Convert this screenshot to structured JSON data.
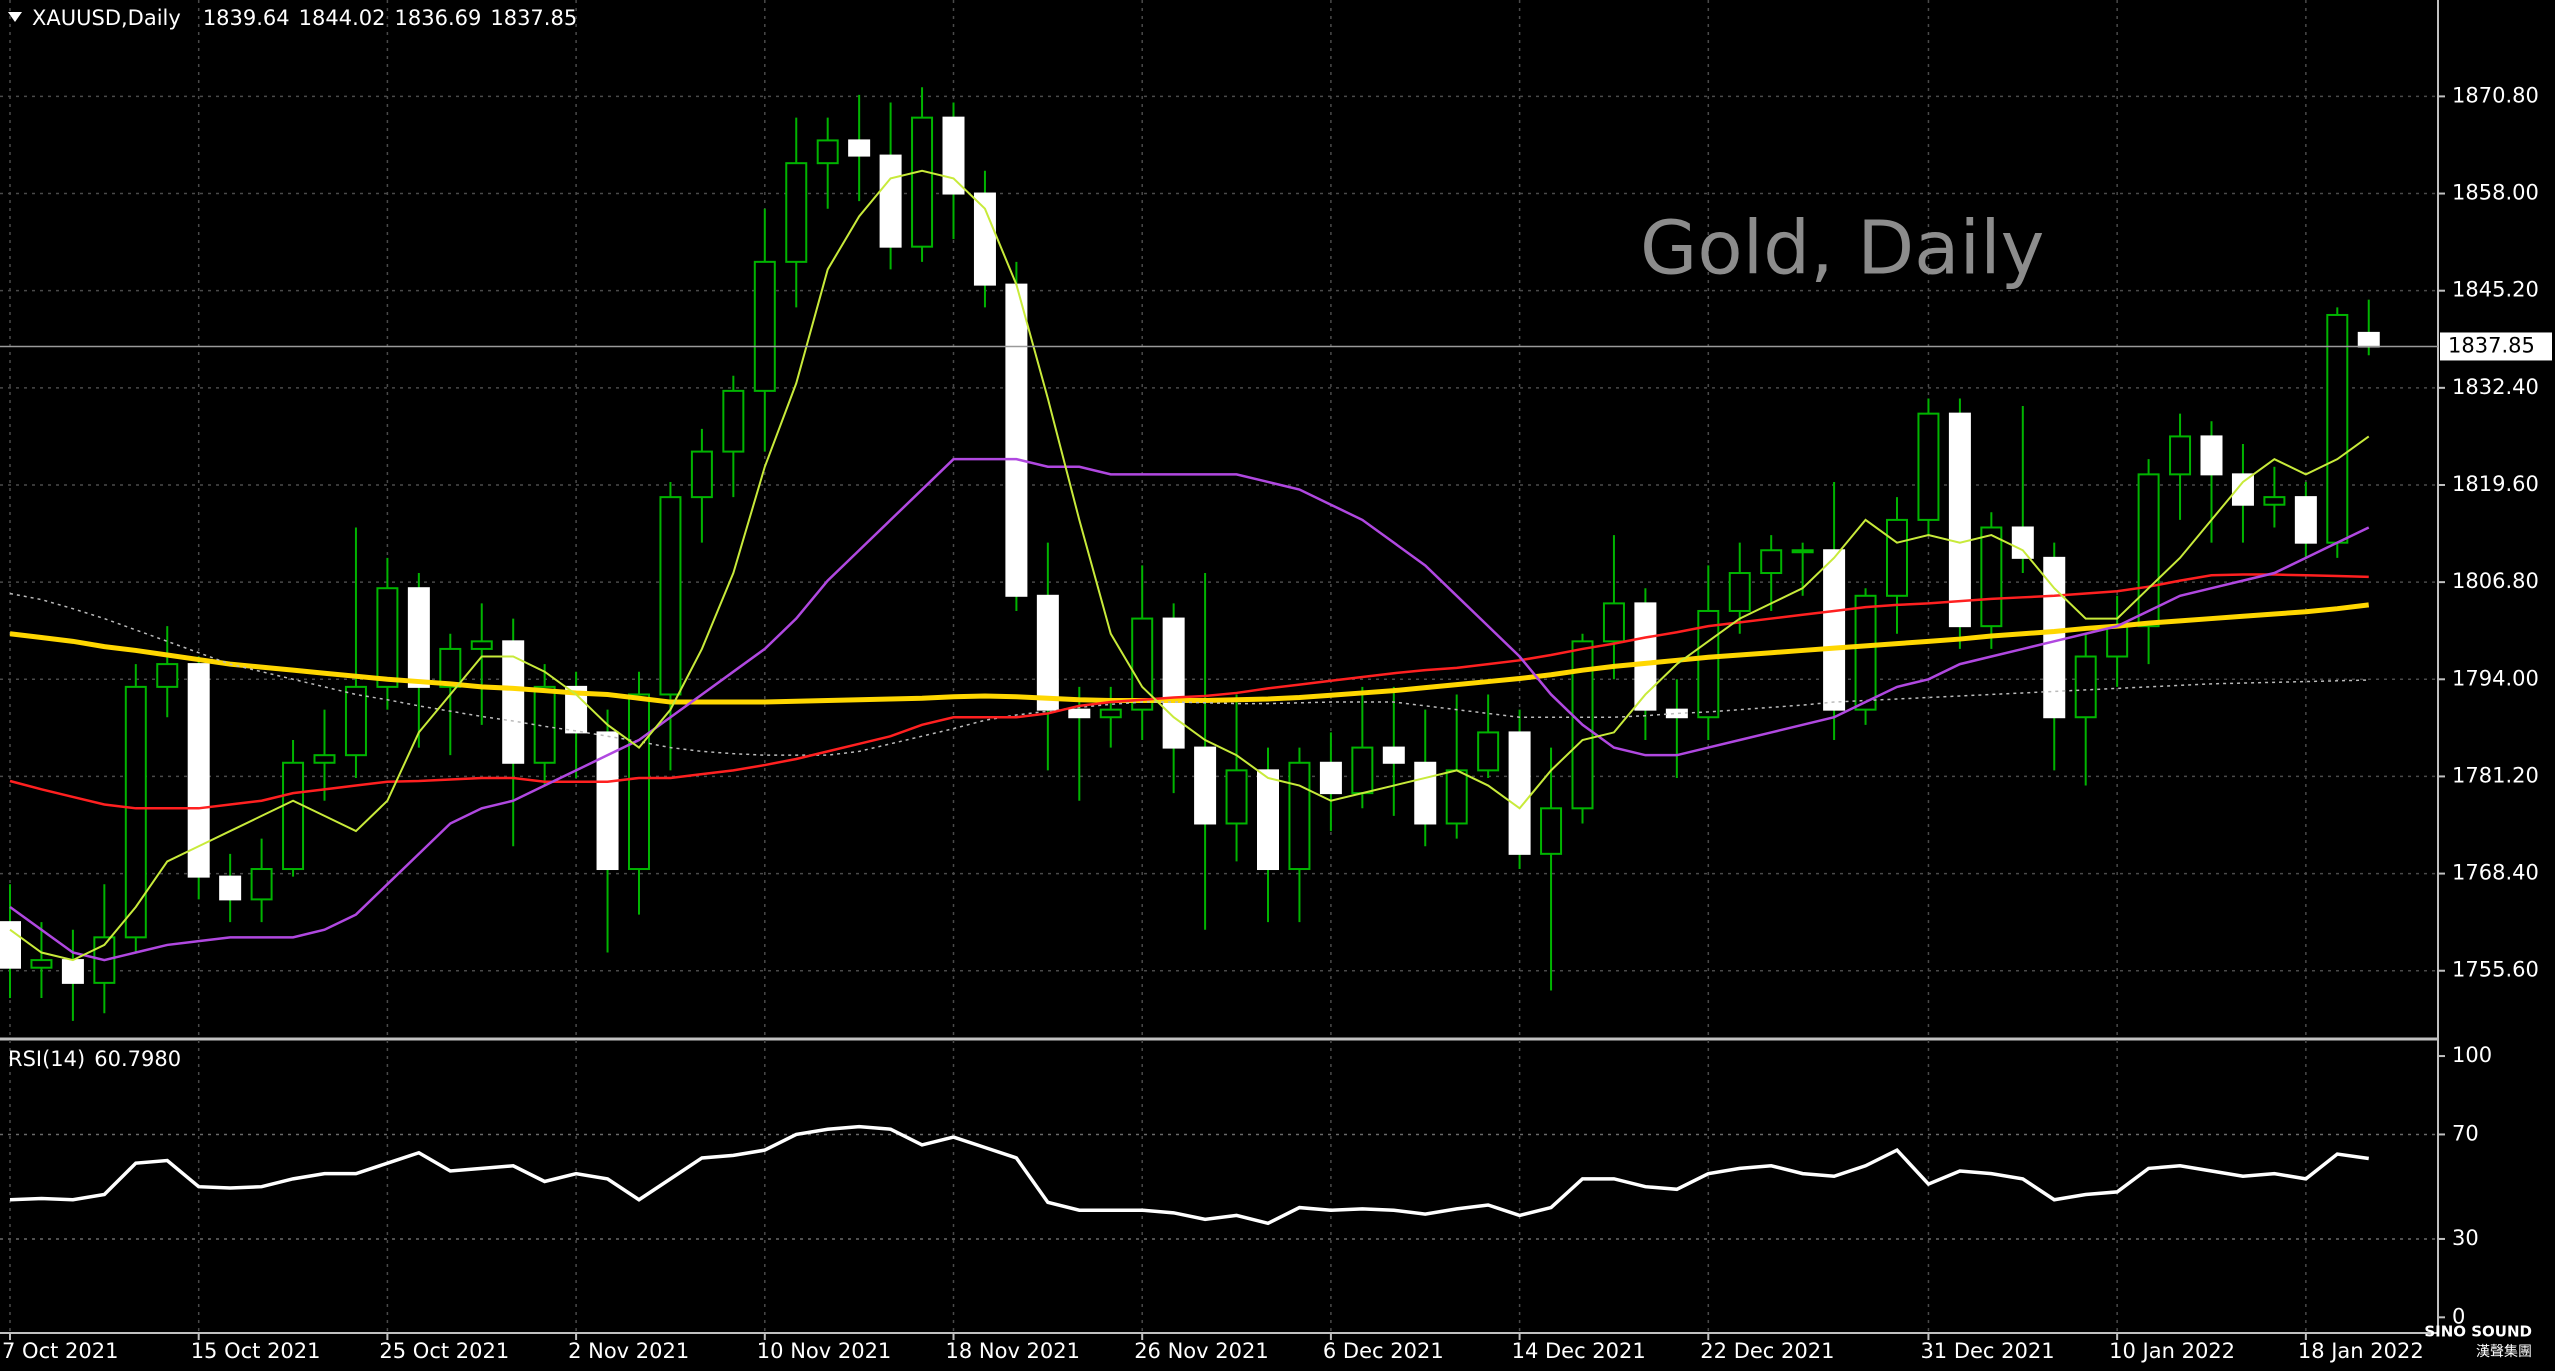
{
  "chart_data": {
    "type": "candlestick",
    "symbol": "XAUUSD,Daily",
    "annotation": "Gold, Daily",
    "categories": [
      "7 Oct 2021",
      null,
      null,
      null,
      null,
      null,
      "15 Oct 2021",
      null,
      null,
      null,
      null,
      null,
      "25 Oct 2021",
      null,
      null,
      null,
      null,
      null,
      "2 Nov 2021",
      null,
      null,
      null,
      null,
      null,
      "10 Nov 2021",
      null,
      null,
      null,
      null,
      null,
      "18 Nov 2021",
      null,
      null,
      null,
      null,
      null,
      "26 Nov 2021",
      null,
      null,
      null,
      null,
      null,
      "6 Dec 2021",
      null,
      null,
      null,
      null,
      null,
      "14 Dec 2021",
      null,
      null,
      null,
      null,
      null,
      "22 Dec 2021",
      null,
      null,
      null,
      null,
      null,
      null,
      "31 Dec 2021",
      null,
      null,
      null,
      null,
      null,
      "10 Jan 2022",
      null,
      null,
      null,
      null,
      null,
      "18 Jan 2022",
      null,
      null
    ],
    "candles": [
      [
        1762,
        1767,
        1752,
        1756
      ],
      [
        1756,
        1762,
        1752,
        1757
      ],
      [
        1757,
        1761,
        1749,
        1754
      ],
      [
        1754,
        1767,
        1750,
        1760
      ],
      [
        1760,
        1796,
        1758,
        1793
      ],
      [
        1793,
        1801,
        1789,
        1796
      ],
      [
        1796,
        1797,
        1765,
        1768
      ],
      [
        1768,
        1771,
        1762,
        1765
      ],
      [
        1765,
        1773,
        1762,
        1769
      ],
      [
        1769,
        1786,
        1768,
        1783
      ],
      [
        1783,
        1790,
        1778,
        1784
      ],
      [
        1784,
        1814,
        1781,
        1793
      ],
      [
        1793,
        1810,
        1790,
        1806
      ],
      [
        1806,
        1808,
        1785,
        1793
      ],
      [
        1793,
        1800,
        1784,
        1798
      ],
      [
        1798,
        1804,
        1788,
        1799
      ],
      [
        1799,
        1802,
        1772,
        1783
      ],
      [
        1783,
        1796,
        1780,
        1793
      ],
      [
        1793,
        1795,
        1781,
        1787
      ],
      [
        1787,
        1790,
        1758,
        1769
      ],
      [
        1769,
        1795,
        1763,
        1792
      ],
      [
        1792,
        1820,
        1782,
        1818
      ],
      [
        1818,
        1827,
        1812,
        1824
      ],
      [
        1824,
        1834,
        1818,
        1832
      ],
      [
        1832,
        1856,
        1824,
        1849
      ],
      [
        1849,
        1868,
        1843,
        1862
      ],
      [
        1862,
        1868,
        1856,
        1865
      ],
      [
        1865,
        1871,
        1857,
        1863
      ],
      [
        1863,
        1870,
        1848,
        1851
      ],
      [
        1851,
        1872,
        1849,
        1868
      ],
      [
        1868,
        1870,
        1852,
        1858
      ],
      [
        1858,
        1861,
        1843,
        1846
      ],
      [
        1846,
        1849,
        1803,
        1805
      ],
      [
        1805,
        1812,
        1782,
        1790
      ],
      [
        1790,
        1793,
        1778,
        1789
      ],
      [
        1789,
        1793,
        1785,
        1790
      ],
      [
        1790,
        1809,
        1786,
        1802
      ],
      [
        1802,
        1804,
        1779,
        1785
      ],
      [
        1785,
        1808,
        1761,
        1775
      ],
      [
        1775,
        1792,
        1770,
        1782
      ],
      [
        1782,
        1785,
        1762,
        1769
      ],
      [
        1769,
        1785,
        1762,
        1783
      ],
      [
        1783,
        1787,
        1774,
        1779
      ],
      [
        1779,
        1793,
        1777,
        1785
      ],
      [
        1785,
        1793,
        1776,
        1783
      ],
      [
        1783,
        1790,
        1772,
        1775
      ],
      [
        1775,
        1792,
        1773,
        1782
      ],
      [
        1782,
        1792,
        1781,
        1787
      ],
      [
        1787,
        1790,
        1769,
        1771
      ],
      [
        1771,
        1785,
        1753,
        1777
      ],
      [
        1777,
        1800,
        1775,
        1799
      ],
      [
        1799,
        1813,
        1794,
        1804
      ],
      [
        1804,
        1806,
        1786,
        1790
      ],
      [
        1790,
        1794,
        1781,
        1789
      ],
      [
        1789,
        1809,
        1786,
        1803
      ],
      [
        1803,
        1812,
        1800,
        1808
      ],
      [
        1808,
        1813,
        1803,
        1811
      ],
      [
        1811,
        1812,
        1805,
        1811
      ],
      [
        1811,
        1820,
        1786,
        1790
      ],
      [
        1790,
        1806,
        1788,
        1805
      ],
      [
        1805,
        1818,
        1800,
        1815
      ],
      [
        1815,
        1831,
        1813,
        1829
      ],
      [
        1829,
        1831,
        1798,
        1801
      ],
      [
        1801,
        1816,
        1798,
        1814
      ],
      [
        1814,
        1830,
        1808,
        1810
      ],
      [
        1810,
        1812,
        1782,
        1789
      ],
      [
        1789,
        1800,
        1780,
        1797
      ],
      [
        1797,
        1805,
        1793,
        1801
      ],
      [
        1801,
        1823,
        1796,
        1821
      ],
      [
        1821,
        1829,
        1815,
        1826
      ],
      [
        1826,
        1828,
        1812,
        1821
      ],
      [
        1821,
        1825,
        1812,
        1817
      ],
      [
        1817,
        1822,
        1814,
        1818
      ],
      [
        1818,
        1820,
        1810,
        1812
      ],
      [
        1812,
        1843,
        1810,
        1842
      ],
      [
        1839.64,
        1844.02,
        1836.69,
        1837.85
      ]
    ],
    "up_color": "#000000",
    "up_outline": "#00b400",
    "down_color": "#ffffff",
    "wick_color": "#00b400",
    "overlays": [
      {
        "color": "#ffd700",
        "width": 5,
        "dash": false,
        "values": [
          1800,
          1799.5,
          1799,
          1798.3,
          1797.8,
          1797.2,
          1796.6,
          1796,
          1795.6,
          1795.2,
          1794.8,
          1794.4,
          1794,
          1793.7,
          1793.4,
          1793,
          1792.8,
          1792.5,
          1792.2,
          1792,
          1791.5,
          1791,
          1791,
          1791,
          1791,
          1791.1,
          1791.2,
          1791.3,
          1791.4,
          1791.5,
          1791.7,
          1791.8,
          1791.7,
          1791.5,
          1791.3,
          1791.2,
          1791.2,
          1791.2,
          1791.2,
          1791.3,
          1791.4,
          1791.6,
          1791.9,
          1792.2,
          1792.5,
          1792.9,
          1793.3,
          1793.7,
          1794.1,
          1794.6,
          1795.2,
          1795.7,
          1796.1,
          1796.5,
          1796.9,
          1797.2,
          1797.5,
          1797.8,
          1798.1,
          1798.4,
          1798.7,
          1799,
          1799.3,
          1799.7,
          1800,
          1800.3,
          1800.7,
          1801,
          1801.4,
          1801.7,
          1802,
          1802.3,
          1802.6,
          1802.9,
          1803.3,
          1803.8
        ]
      },
      {
        "color": "#bbbbbb",
        "width": 1.5,
        "dash": true,
        "values": [
          1805.3,
          1804.5,
          1803.3,
          1802,
          1800.5,
          1799,
          1797.5,
          1796,
          1795,
          1794,
          1793,
          1792,
          1791.3,
          1790.5,
          1789.8,
          1789.1,
          1788.5,
          1787.8,
          1787.2,
          1786.5,
          1785.8,
          1785,
          1784.5,
          1784.2,
          1784,
          1784,
          1784,
          1784.5,
          1785.5,
          1786.5,
          1787.5,
          1788.6,
          1789.3,
          1789.8,
          1790.3,
          1790.7,
          1791,
          1791,
          1790.9,
          1790.8,
          1790.8,
          1790.9,
          1791,
          1791,
          1791,
          1790.5,
          1790,
          1789.5,
          1789,
          1789,
          1789,
          1789,
          1789.2,
          1789.5,
          1789.7,
          1790,
          1790.3,
          1790.6,
          1791,
          1791.2,
          1791.4,
          1791.6,
          1791.8,
          1792,
          1792.2,
          1792.4,
          1792.6,
          1792.8,
          1793,
          1793.2,
          1793.4,
          1793.5,
          1793.6,
          1793.7,
          1793.8,
          1793.9
        ]
      },
      {
        "color": "#ff2020",
        "width": 2.5,
        "dash": false,
        "values": [
          1780.6,
          1779.5,
          1778.5,
          1777.5,
          1777,
          1777,
          1777,
          1777.5,
          1778,
          1779,
          1779.5,
          1780,
          1780.5,
          1780.6,
          1780.8,
          1781,
          1781,
          1780.5,
          1780.5,
          1780.5,
          1781,
          1781,
          1781.5,
          1782,
          1782.7,
          1783.5,
          1784.5,
          1785.5,
          1786.5,
          1788,
          1789,
          1789,
          1789,
          1789.5,
          1790.5,
          1791,
          1791.3,
          1791.6,
          1791.8,
          1792.2,
          1792.8,
          1793.3,
          1793.8,
          1794.3,
          1794.8,
          1795.2,
          1795.5,
          1796,
          1796.5,
          1797.2,
          1798,
          1798.7,
          1799.5,
          1800.2,
          1801,
          1801.5,
          1802,
          1802.5,
          1803,
          1803.5,
          1803.8,
          1804,
          1804.3,
          1804.6,
          1804.8,
          1805,
          1805.3,
          1805.6,
          1806.2,
          1807,
          1807.7,
          1807.8,
          1807.8,
          1807.7,
          1807.6,
          1807.5
        ]
      },
      {
        "color": "#b048e0",
        "width": 2.5,
        "dash": false,
        "values": [
          1764,
          1761,
          1758,
          1757,
          1758,
          1759,
          1759.5,
          1760,
          1760,
          1760,
          1761,
          1763,
          1767,
          1771,
          1775,
          1777,
          1778,
          1780,
          1782,
          1784,
          1786,
          1789,
          1792,
          1795,
          1798,
          1802,
          1807,
          1811,
          1815,
          1819,
          1823,
          1823,
          1823,
          1822,
          1822,
          1821,
          1821,
          1821,
          1821,
          1821,
          1820,
          1819,
          1817,
          1815,
          1812,
          1809,
          1805,
          1801,
          1797,
          1792,
          1788,
          1785,
          1784,
          1784,
          1785,
          1786,
          1787,
          1788,
          1789,
          1791,
          1793,
          1794,
          1796,
          1797,
          1798,
          1799,
          1800,
          1801,
          1803,
          1805,
          1806,
          1807,
          1808,
          1810,
          1812,
          1814
        ]
      },
      {
        "color": "#c8ea3a",
        "width": 2,
        "dash": false,
        "values": [
          1761,
          1758,
          1757,
          1759,
          1764,
          1770,
          1772,
          1774,
          1776,
          1778,
          1776,
          1774,
          1778,
          1787,
          1792,
          1797,
          1797,
          1795,
          1792,
          1788,
          1785,
          1790,
          1798,
          1808,
          1822,
          1833,
          1848,
          1855,
          1860,
          1861,
          1860,
          1856,
          1846,
          1831,
          1815,
          1800,
          1793,
          1789,
          1786,
          1784,
          1781,
          1780,
          1778,
          1779,
          1780,
          1781,
          1782,
          1780,
          1777,
          1782,
          1786,
          1787,
          1792,
          1796,
          1799,
          1802,
          1804,
          1806,
          1810,
          1815,
          1812,
          1813,
          1812,
          1813,
          1811,
          1806,
          1802,
          1802,
          1806,
          1810,
          1815,
          1820,
          1823,
          1821,
          1823,
          1826
        ]
      }
    ],
    "ylim": [
      1747,
      1883.5
    ],
    "yticks": [
      {
        "value": 1870.8,
        "label": "1870.80"
      },
      {
        "value": 1858,
        "label": "1858.00"
      },
      {
        "value": 1845.2,
        "label": "1845.20"
      },
      {
        "value": 1832.4,
        "label": "1832.40"
      },
      {
        "value": 1819.6,
        "label": "1819.60"
      },
      {
        "value": 1806.8,
        "label": "1806.80"
      },
      {
        "value": 1794,
        "label": "1794.00"
      },
      {
        "value": 1781.2,
        "label": "1781.20"
      },
      {
        "value": 1768.4,
        "label": "1768.40"
      },
      {
        "value": 1755.6,
        "label": "1755.60"
      }
    ],
    "grid": true,
    "rsi": {
      "label": "RSI(14)",
      "last_label": "60.7980",
      "color": "#ffffff",
      "values": [
        45,
        45.5,
        45,
        47,
        59,
        60,
        50,
        49.5,
        50,
        53,
        55,
        55,
        59,
        63,
        56,
        57,
        58,
        52,
        55,
        53,
        45,
        53,
        61,
        62,
        64,
        70,
        72,
        73,
        72,
        66,
        69,
        65,
        61,
        44,
        41,
        41,
        41,
        40,
        37.5,
        39,
        36,
        42,
        41,
        41.5,
        41,
        39.5,
        41.5,
        43,
        39,
        42,
        53,
        53,
        50,
        49,
        55,
        57,
        58,
        55,
        54,
        58,
        64,
        51,
        56,
        55,
        53,
        45,
        47,
        48,
        57,
        58,
        56,
        54,
        55,
        53,
        62.5,
        60.798
      ],
      "ylim": [
        -6,
        105
      ],
      "yticks": [
        100,
        70,
        30,
        0
      ],
      "levels": [
        70,
        30
      ]
    },
    "watermark": {
      "name": "SINO SOUND",
      "subtitle": "漢聲集團"
    }
  }
}
